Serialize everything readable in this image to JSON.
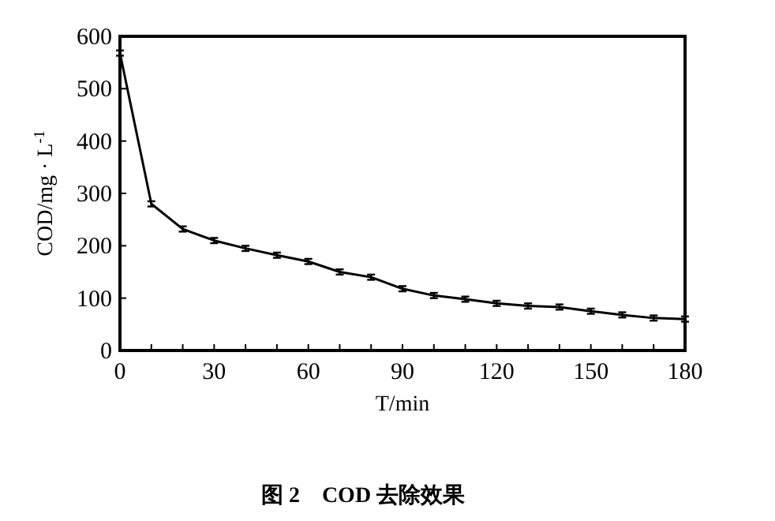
{
  "chart_data": {
    "type": "line",
    "title": "图 2　COD 去除效果",
    "xlabel": "T/min",
    "ylabel": "COD/mg · L$^{-1}$",
    "x": [
      0,
      10,
      20,
      30,
      40,
      50,
      60,
      70,
      80,
      90,
      100,
      110,
      120,
      130,
      140,
      150,
      160,
      170,
      180
    ],
    "values": [
      568,
      280,
      232,
      210,
      195,
      182,
      170,
      150,
      140,
      118,
      105,
      98,
      90,
      85,
      83,
      75,
      68,
      62,
      60
    ],
    "errors": [
      5,
      5,
      5,
      5,
      5,
      5,
      5,
      5,
      5,
      5,
      5,
      5,
      5,
      5,
      5,
      5,
      5,
      5,
      5
    ],
    "color": "#000000",
    "marker": "none",
    "line_style": "solid",
    "grid": false,
    "xlim": [
      0,
      180
    ],
    "ylim": [
      0,
      600
    ],
    "xticks": [
      0,
      {
        "value": 10,
        "label": null
      },
      {
        "value": 20,
        "label": null
      },
      30,
      {
        "value": 40,
        "label": null
      },
      {
        "value": 50,
        "label": null
      },
      60,
      {
        "value": 70,
        "label": null
      },
      {
        "value": 80,
        "label": null
      },
      90,
      {
        "value": 100,
        "label": null
      },
      {
        "value": 110,
        "label": null
      },
      120,
      {
        "value": 130,
        "label": null
      },
      {
        "value": 140,
        "label": null
      },
      150,
      {
        "value": 160,
        "label": null
      },
      {
        "value": 170,
        "label": null
      },
      180
    ],
    "yticks": [
      0,
      100,
      200,
      300,
      400,
      500,
      600
    ]
  }
}
